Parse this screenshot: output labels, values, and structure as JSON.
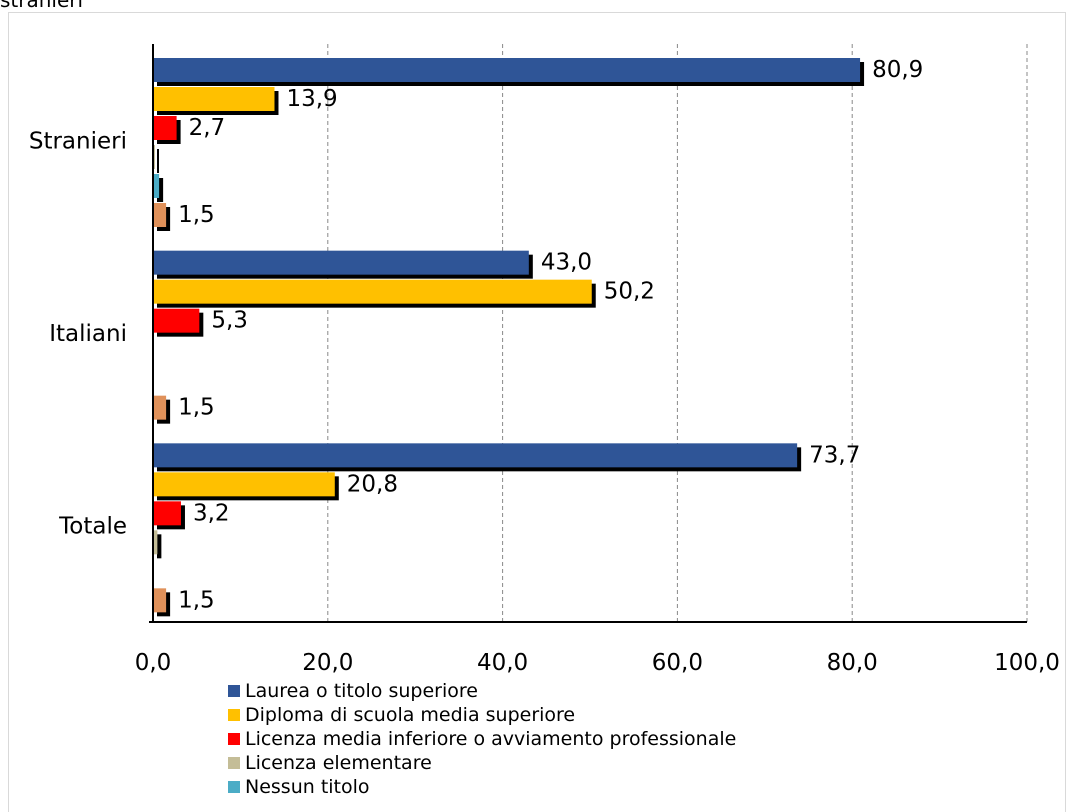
{
  "page": {
    "top_text": "stranieri"
  },
  "chart_data": {
    "type": "bar",
    "orientation": "horizontal",
    "categories": [
      "Stranieri",
      "Italiani",
      "Totale"
    ],
    "series": [
      {
        "name": "Laurea o titolo superiore",
        "color": "#2F5597",
        "values": [
          80.9,
          43.0,
          73.7
        ],
        "labels": [
          "80,9",
          "43,0",
          "73,7"
        ]
      },
      {
        "name": "Diploma di scuola media superiore",
        "color": "#FFC000",
        "values": [
          13.9,
          50.2,
          20.8
        ],
        "labels": [
          "13,9",
          "50,2",
          "20,8"
        ]
      },
      {
        "name": "Licenza media inferiore o avviamento professionale",
        "color": "#FF0000",
        "values": [
          2.7,
          5.3,
          3.2
        ],
        "labels": [
          "2,7",
          "5,3",
          "3,2"
        ]
      },
      {
        "name": "Licenza elementare",
        "color": "#C4BD97",
        "values": [
          0.1,
          0.0,
          0.5
        ],
        "labels": [
          "",
          "",
          ""
        ]
      },
      {
        "name": "Nessun titolo",
        "color": "#4BACC6",
        "values": [
          0.7,
          0.0,
          0.0
        ],
        "labels": [
          "",
          "",
          ""
        ]
      },
      {
        "name": "",
        "color": "#E0915A",
        "values": [
          1.5,
          1.5,
          1.5
        ],
        "labels": [
          "1,5",
          "1,5",
          "1,5"
        ]
      }
    ],
    "xlim": [
      0,
      100
    ],
    "x_ticks": [
      0,
      20,
      40,
      60,
      80,
      100
    ],
    "x_tick_labels": [
      "0,0",
      "20,0",
      "40,0",
      "60,0",
      "80,0",
      "100,0"
    ],
    "grid": true,
    "legend_position": "bottom",
    "title": "",
    "xlabel": "",
    "ylabel": ""
  }
}
